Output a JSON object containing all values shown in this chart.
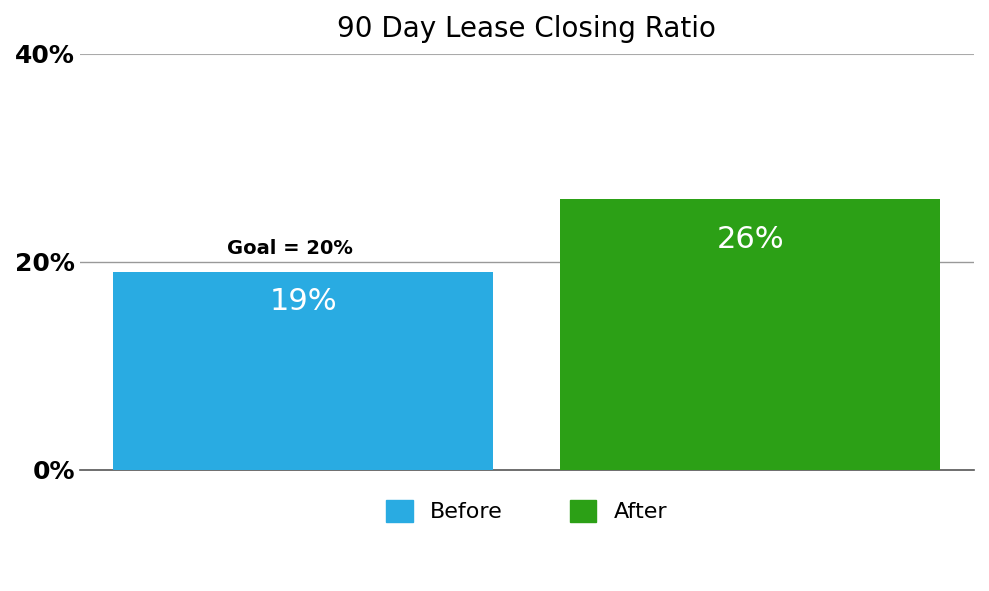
{
  "title": "90 Day Lease Closing Ratio",
  "categories": [
    "Before",
    "After"
  ],
  "values": [
    19,
    26
  ],
  "bar_colors": [
    "#29ABE2",
    "#2CA016"
  ],
  "label_texts": [
    "19%",
    "26%"
  ],
  "label_color": "#ffffff",
  "goal_value": 20,
  "goal_label": "Goal = 20%",
  "ylim": [
    0,
    40
  ],
  "yticks": [
    0,
    20,
    40
  ],
  "ytick_labels": [
    "0%",
    "20%",
    "40%"
  ],
  "background_color": "#ffffff",
  "title_fontsize": 20,
  "bar_label_fontsize": 22,
  "tick_fontsize": 18,
  "goal_fontsize": 14,
  "legend_fontsize": 16
}
